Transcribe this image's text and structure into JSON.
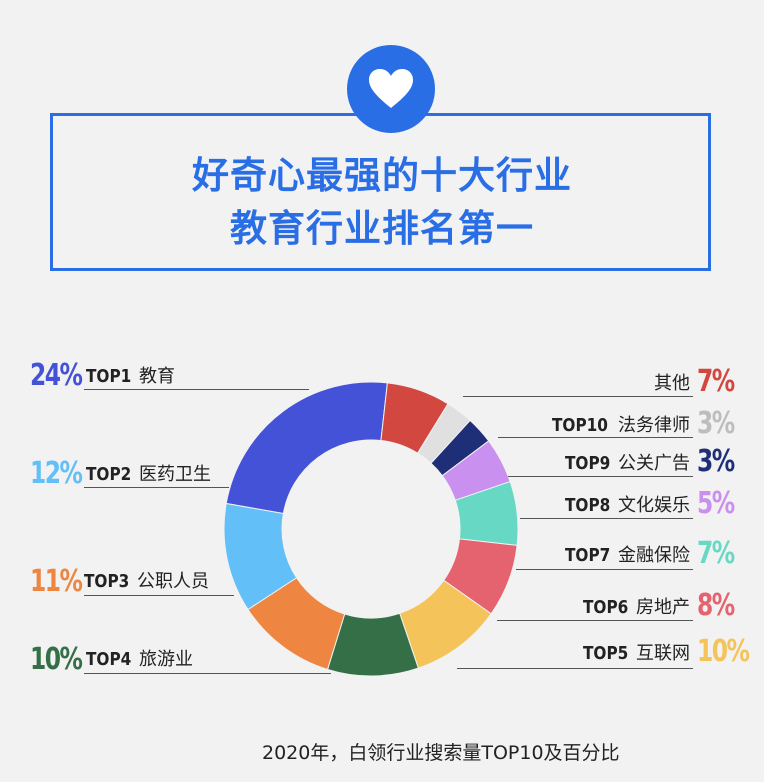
{
  "title": {
    "line1": "好奇心最强的十大行业",
    "line2": "教育行业排名第一"
  },
  "footer": "2020年，白领行业搜索量TOP10及百分比",
  "chart_data": {
    "type": "pie",
    "categories": [
      "TOP1 教育",
      "其他",
      "TOP10 法务律师",
      "TOP9 公关广告",
      "TOP8 文化娱乐",
      "TOP7 金融保险",
      "TOP6 房地产",
      "TOP5 互联网",
      "TOP4 旅游业",
      "TOP3公职人员",
      "TOP2 医药卫生"
    ],
    "values": [
      24,
      7,
      3,
      3,
      5,
      7,
      8,
      10,
      10,
      11,
      12
    ],
    "unit": "%",
    "colors": [
      "#4452d8",
      "#d2473f",
      "#e0e0e0",
      "#1e2f78",
      "#c990f0",
      "#67d8c4",
      "#e5636e",
      "#f4c35a",
      "#356f48",
      "#ee8641",
      "#62bff7"
    ]
  },
  "labels": [
    {
      "pct": "24%",
      "top": "TOP1",
      "name": "教育"
    },
    {
      "pct": "7%",
      "top": "",
      "name": "其他"
    },
    {
      "pct": "3%",
      "top": "TOP10",
      "name": "法务律师"
    },
    {
      "pct": "3%",
      "top": "TOP9",
      "name": "公关广告"
    },
    {
      "pct": "5%",
      "top": "TOP8",
      "name": "文化娱乐"
    },
    {
      "pct": "7%",
      "top": "TOP7",
      "name": "金融保险"
    },
    {
      "pct": "8%",
      "top": "TOP6",
      "name": "房地产"
    },
    {
      "pct": "10%",
      "top": "TOP5",
      "name": "互联网"
    },
    {
      "pct": "10%",
      "top": "TOP4",
      "name": "旅游业"
    },
    {
      "pct": "11%",
      "top": "TOP3",
      "name": "公职人员"
    },
    {
      "pct": "12%",
      "top": "TOP2",
      "name": "医药卫生"
    }
  ]
}
